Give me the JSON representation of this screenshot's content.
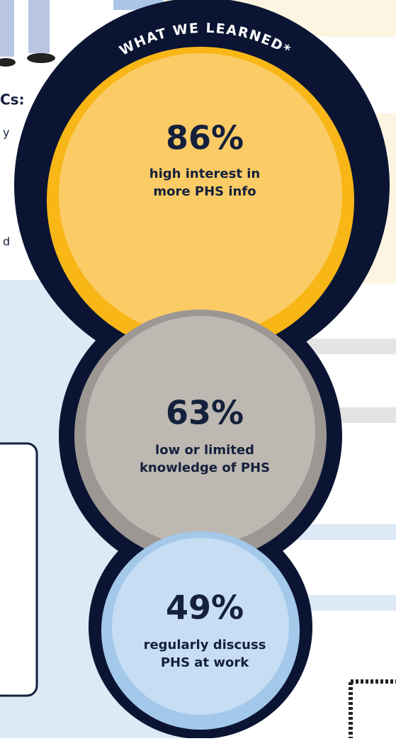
{
  "header": {
    "arc_title": "WHAT WE LEARNED*"
  },
  "fragments": [
    "Cs:",
    "y",
    "d"
  ],
  "stats": [
    {
      "value": "86%",
      "lines": [
        "high interest in",
        "more PHS info"
      ]
    },
    {
      "value": "63%",
      "lines": [
        "low or limited",
        "knowledge of PHS"
      ]
    },
    {
      "value": "49%",
      "lines": [
        "regularly discuss",
        "PHS at work"
      ]
    }
  ]
}
